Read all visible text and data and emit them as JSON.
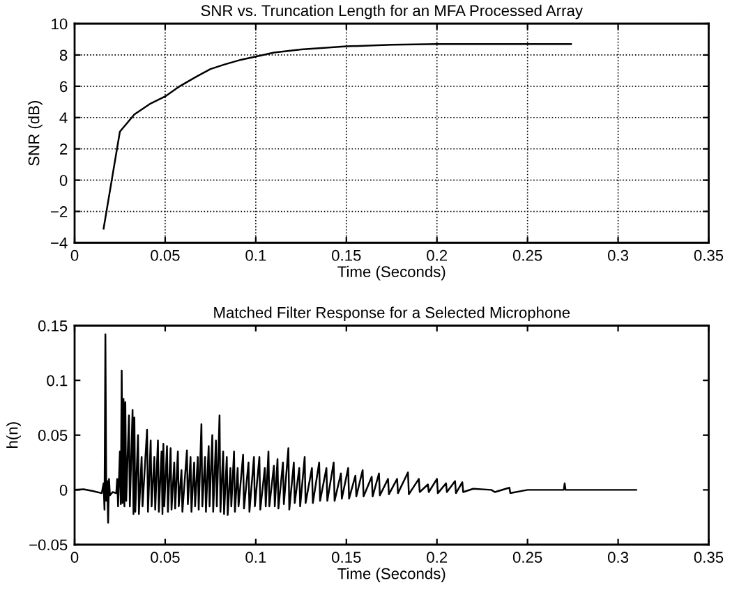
{
  "chart_data": [
    {
      "type": "line",
      "title": "SNR vs. Truncation Length for an MFA Processed Array",
      "xlabel": "Time (Seconds)",
      "ylabel": "SNR (dB)",
      "x": [
        0.016,
        0.025,
        0.033,
        0.042,
        0.05,
        0.058,
        0.067,
        0.075,
        0.083,
        0.092,
        0.1,
        0.11,
        0.125,
        0.15,
        0.175,
        0.2,
        0.25,
        0.274
      ],
      "series": [
        {
          "color": "#000000",
          "values": [
            -3.1,
            3.1,
            4.2,
            4.9,
            5.35,
            6.0,
            6.6,
            7.1,
            7.4,
            7.7,
            7.9,
            8.15,
            8.35,
            8.55,
            8.65,
            8.7,
            8.7,
            8.7
          ]
        }
      ],
      "xlim": [
        0,
        0.35
      ],
      "xticks": [
        0,
        0.05,
        0.1,
        0.15,
        0.2,
        0.25,
        0.3,
        0.35
      ],
      "ylim": [
        -4,
        10
      ],
      "yticks": [
        -4,
        -2,
        0,
        2,
        4,
        6,
        8,
        10
      ],
      "grid": true,
      "line_style": "solid"
    },
    {
      "type": "line",
      "title": "Matched Filter Response for a Selected Microphone",
      "xlabel": "Time (Seconds)",
      "ylabel": "h(n)",
      "x": [
        0,
        0.005,
        0.01,
        0.015,
        0.016,
        0.0165,
        0.017,
        0.0175,
        0.018,
        0.0185,
        0.019,
        0.0195,
        0.021,
        0.023,
        0.0235,
        0.024,
        0.025,
        0.0255,
        0.026,
        0.0265,
        0.027,
        0.0275,
        0.028,
        0.0285,
        0.03,
        0.0305,
        0.032,
        0.0325,
        0.033,
        0.0335,
        0.035,
        0.0355,
        0.037,
        0.0375,
        0.04,
        0.0405,
        0.042,
        0.0425,
        0.044,
        0.0445,
        0.046,
        0.0465,
        0.048,
        0.0485,
        0.049,
        0.0495,
        0.051,
        0.0515,
        0.053,
        0.0535,
        0.055,
        0.0555,
        0.057,
        0.0575,
        0.059,
        0.0595,
        0.062,
        0.0625,
        0.064,
        0.0645,
        0.066,
        0.0665,
        0.068,
        0.0685,
        0.07,
        0.0705,
        0.072,
        0.0725,
        0.074,
        0.0745,
        0.076,
        0.0765,
        0.078,
        0.0785,
        0.08,
        0.0805,
        0.082,
        0.0825,
        0.084,
        0.0845,
        0.086,
        0.0865,
        0.088,
        0.0885,
        0.09,
        0.0905,
        0.093,
        0.0935,
        0.096,
        0.0965,
        0.099,
        0.0995,
        0.102,
        0.1025,
        0.105,
        0.1055,
        0.107,
        0.1075,
        0.11,
        0.1105,
        0.112,
        0.1125,
        0.115,
        0.1155,
        0.118,
        0.1185,
        0.121,
        0.1215,
        0.124,
        0.1245,
        0.127,
        0.1275,
        0.131,
        0.1315,
        0.135,
        0.1355,
        0.139,
        0.1395,
        0.143,
        0.1435,
        0.147,
        0.1475,
        0.151,
        0.1515,
        0.155,
        0.1555,
        0.159,
        0.1595,
        0.164,
        0.1645,
        0.168,
        0.1685,
        0.173,
        0.1735,
        0.178,
        0.1785,
        0.184,
        0.1845,
        0.19,
        0.1905,
        0.195,
        0.1955,
        0.2,
        0.2005,
        0.205,
        0.2055,
        0.21,
        0.2105,
        0.214,
        0.2145,
        0.22,
        0.23,
        0.232,
        0.24,
        0.2405,
        0.25,
        0.27,
        0.2705,
        0.271,
        0.29,
        0.31
      ],
      "series": [
        {
          "color": "#000000",
          "values": [
            0,
            0.0005,
            -0.001,
            -0.003,
            0.006,
            -0.018,
            0.142,
            -0.01,
            0.008,
            -0.03,
            0.01,
            -0.005,
            -0.002,
            -0.003,
            0.01,
            -0.015,
            0.035,
            -0.013,
            0.109,
            -0.012,
            0.083,
            -0.015,
            0.08,
            -0.01,
            0.068,
            -0.015,
            0.073,
            -0.022,
            0.066,
            -0.02,
            0.05,
            -0.022,
            0.03,
            -0.015,
            0.055,
            -0.02,
            0.045,
            -0.015,
            0.03,
            -0.018,
            0.045,
            -0.02,
            0.035,
            -0.022,
            0.042,
            -0.015,
            0.04,
            -0.02,
            0.038,
            -0.018,
            0.025,
            -0.017,
            0.035,
            -0.015,
            0.018,
            -0.02,
            0.036,
            -0.013,
            0.03,
            -0.02,
            0.025,
            -0.015,
            0.03,
            -0.018,
            0.06,
            -0.015,
            0.03,
            -0.02,
            0.04,
            -0.015,
            0.05,
            -0.02,
            0.045,
            -0.015,
            0.068,
            -0.02,
            0.035,
            -0.022,
            0.03,
            -0.023,
            0.02,
            -0.015,
            0.035,
            -0.02,
            0.02,
            -0.015,
            0.032,
            -0.017,
            0.025,
            -0.02,
            0.03,
            -0.015,
            0.03,
            -0.018,
            0.02,
            -0.015,
            0.035,
            -0.015,
            0.022,
            -0.015,
            0.028,
            -0.017,
            0.025,
            -0.013,
            0.038,
            -0.018,
            0.025,
            -0.012,
            0.02,
            -0.015,
            0.03,
            -0.012,
            0.02,
            -0.012,
            0.025,
            -0.01,
            0.02,
            -0.01,
            0.025,
            -0.01,
            0.015,
            -0.008,
            0.02,
            -0.008,
            0.013,
            -0.006,
            0.018,
            -0.006,
            0.012,
            -0.006,
            0.015,
            -0.005,
            0.01,
            -0.004,
            0.01,
            -0.003,
            0.016,
            -0.004,
            0.01,
            -0.002,
            0.005,
            -0.002,
            0.01,
            -0.003,
            0.006,
            -0.002,
            0.008,
            -0.003,
            0.007,
            -0.002,
            0.001,
            0,
            -0.002,
            0.002,
            -0.003,
            0,
            0,
            0.006,
            0,
            0,
            0
          ]
        }
      ],
      "xlim": [
        0,
        0.35
      ],
      "xticks": [
        0,
        0.05,
        0.1,
        0.15,
        0.2,
        0.25,
        0.3,
        0.35
      ],
      "ylim": [
        -0.05,
        0.15
      ],
      "yticks": [
        -0.05,
        0,
        0.05,
        0.1,
        0.15
      ],
      "grid": false,
      "line_style": "solid"
    }
  ]
}
